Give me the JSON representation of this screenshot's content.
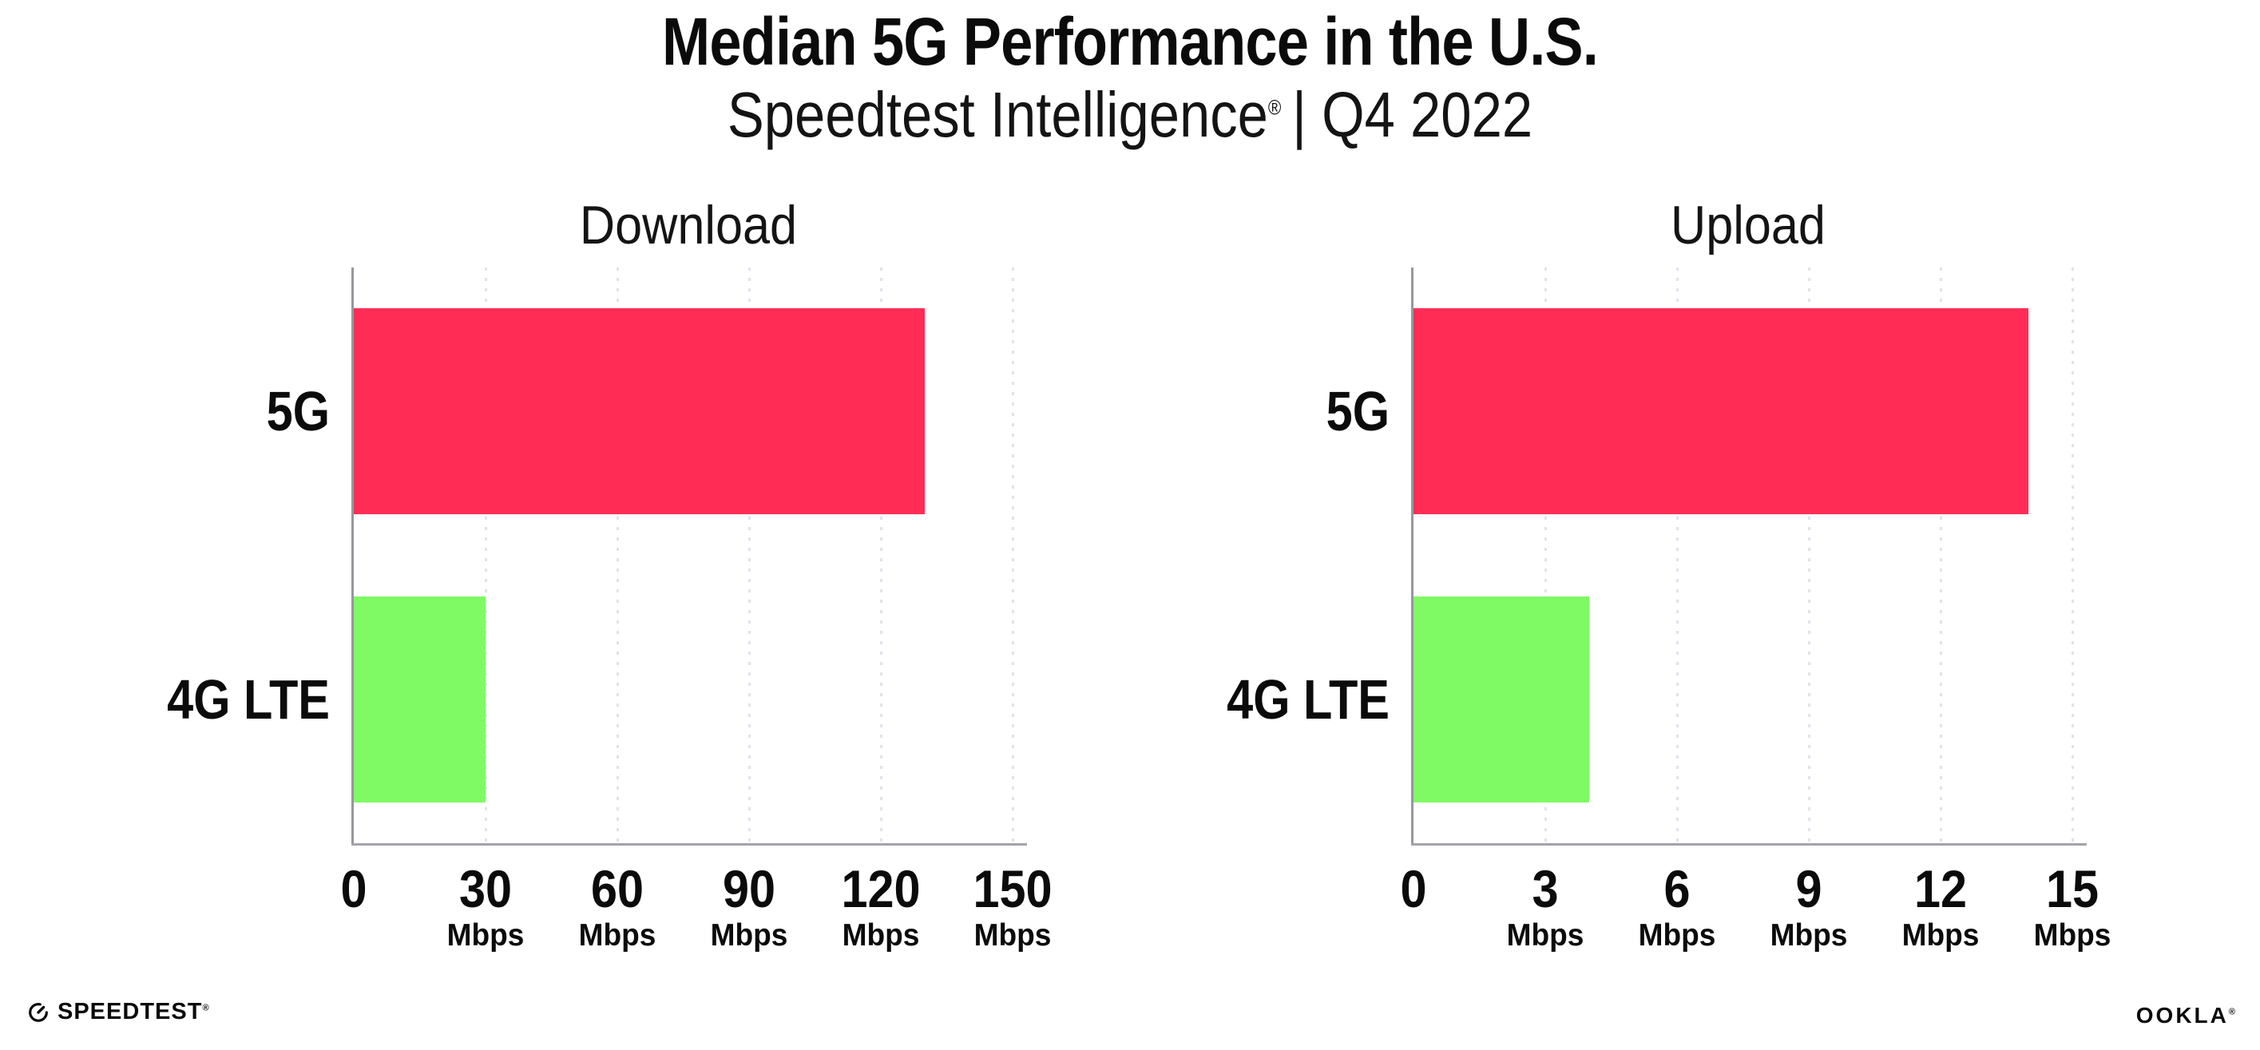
{
  "header": {
    "title": "Median 5G Performance in the U.S.",
    "subtitle_brand": "Speedtest Intelligence",
    "registered_mark": "®",
    "subtitle_rest": "| Q4 2022"
  },
  "chart_data": [
    {
      "type": "bar",
      "orientation": "horizontal",
      "title": "Download",
      "categories": [
        "5G",
        "4G LTE"
      ],
      "values": [
        130,
        30
      ],
      "unit": "Mbps",
      "xlabel": "",
      "ylabel": "",
      "xlim": [
        0,
        150
      ],
      "xticks": [
        0,
        30,
        60,
        90,
        120,
        150
      ],
      "bar_colors": [
        "#FF2D55",
        "#80FA64"
      ],
      "grid": "vertical-dotted",
      "legend": false
    },
    {
      "type": "bar",
      "orientation": "horizontal",
      "title": "Upload",
      "categories": [
        "5G",
        "4G LTE"
      ],
      "values": [
        14,
        4
      ],
      "unit": "Mbps",
      "xlabel": "",
      "ylabel": "",
      "xlim": [
        0,
        15
      ],
      "xticks": [
        0,
        3,
        6,
        9,
        12,
        15
      ],
      "bar_colors": [
        "#FF2D55",
        "#80FA64"
      ],
      "grid": "vertical-dotted",
      "legend": false
    }
  ],
  "colors": {
    "bar_5g": "#FF2D55",
    "bar_4g_lte": "#80FA64",
    "gridline": "#E2E2EE",
    "y_axis": "#97979D",
    "x_axis": "#A4A4AA",
    "text": "#0B0B0B"
  },
  "footer": {
    "speedtest": "SPEEDTEST",
    "speedtest_mark": "®",
    "ookla": "OOKLA",
    "ookla_mark": "®"
  }
}
